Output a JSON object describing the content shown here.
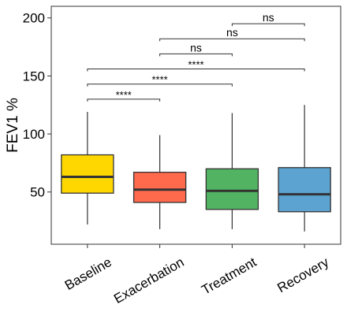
{
  "chart_data": {
    "type": "boxplot",
    "ylabel": "FEV1 %",
    "xlabel": "",
    "ylim": [
      5,
      210
    ],
    "y_ticks": [
      50,
      100,
      150,
      200
    ],
    "grid": false,
    "legend": "none",
    "categories": [
      "Baseline",
      "Exacerbation",
      "Treatment",
      "Recovery"
    ],
    "colors": [
      "#FFD700",
      "#FF6A4D",
      "#52B463",
      "#5CA3D1"
    ],
    "boxes": [
      {
        "whisker_low": 22,
        "q1": 49,
        "median": 63,
        "q3": 82,
        "whisker_high": 119
      },
      {
        "whisker_low": 18,
        "q1": 41,
        "median": 52,
        "q3": 67,
        "whisker_high": 99
      },
      {
        "whisker_low": 18,
        "q1": 35,
        "median": 51,
        "q3": 70,
        "whisker_high": 118
      },
      {
        "whisker_low": 16,
        "q1": 33,
        "median": 48,
        "q3": 71,
        "whisker_high": 125
      }
    ],
    "comparisons": [
      {
        "from": "Baseline",
        "to": "Exacerbation",
        "label": "****",
        "y": 130
      },
      {
        "from": "Baseline",
        "to": "Treatment",
        "label": "****",
        "y": 143
      },
      {
        "from": "Baseline",
        "to": "Recovery",
        "label": "****",
        "y": 156
      },
      {
        "from": "Exacerbation",
        "to": "Treatment",
        "label": "ns",
        "y": 169
      },
      {
        "from": "Exacerbation",
        "to": "Recovery",
        "label": "ns",
        "y": 182
      },
      {
        "from": "Treatment",
        "to": "Recovery",
        "label": "ns",
        "y": 195
      }
    ]
  }
}
